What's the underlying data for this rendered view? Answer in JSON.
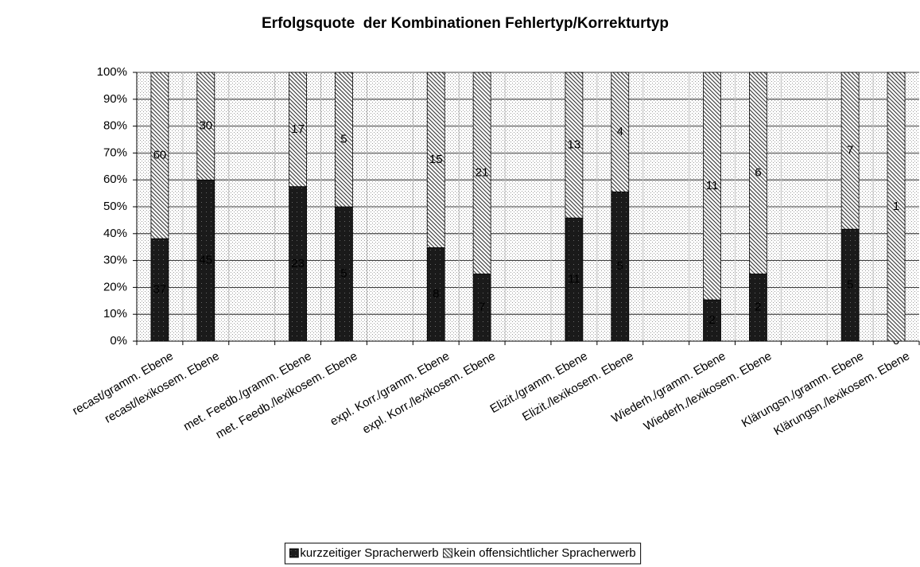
{
  "chart_data": {
    "type": "bar",
    "stacked": "percent",
    "title": "Erfolgsquote  der Kombinationen Fehlertyp/Korrekturtyp",
    "categories": [
      "recast/gramm. Ebene",
      "recast/lexikosem. Ebene",
      null,
      "met. Feedb./gramm. Ebene",
      "met. Feedb./lexikosem. Ebene",
      null,
      "expl. Korr./gramm. Ebene",
      "expl. Korr./lexikosem. Ebene",
      null,
      "Elizit./gramm. Ebene",
      "Elizit./lexikosem. Ebene",
      null,
      "Wiederh./gramm. Ebene",
      "Wiederh./lexikosem. Ebene",
      null,
      "Klärungsn./gramm. Ebene",
      "Klärungsn./lexikosem. Ebene"
    ],
    "series": [
      {
        "name": "kurzzeitiger Spracherwerb",
        "color": "#1a1a1a",
        "values": [
          37,
          45,
          null,
          23,
          5,
          null,
          8,
          7,
          null,
          11,
          5,
          null,
          2,
          2,
          null,
          5,
          0
        ]
      },
      {
        "name": "kein offensichtlicher Spracherwerb",
        "color": "#444444",
        "values": [
          60,
          30,
          null,
          17,
          5,
          null,
          15,
          21,
          null,
          13,
          4,
          null,
          11,
          6,
          null,
          7,
          1
        ]
      }
    ],
    "ylim": [
      0,
      100
    ],
    "yticks": [
      {
        "value": 0,
        "label": "0%"
      },
      {
        "value": 10,
        "label": "10%"
      },
      {
        "value": 20,
        "label": "20%"
      },
      {
        "value": 30,
        "label": "30%"
      },
      {
        "value": 40,
        "label": "40%"
      },
      {
        "value": 50,
        "label": "50%"
      },
      {
        "value": 60,
        "label": "60%"
      },
      {
        "value": 70,
        "label": "70%"
      },
      {
        "value": 80,
        "label": "80%"
      },
      {
        "value": 90,
        "label": "90%"
      },
      {
        "value": 100,
        "label": "100%"
      }
    ],
    "grid": true,
    "legend": "bottom"
  }
}
